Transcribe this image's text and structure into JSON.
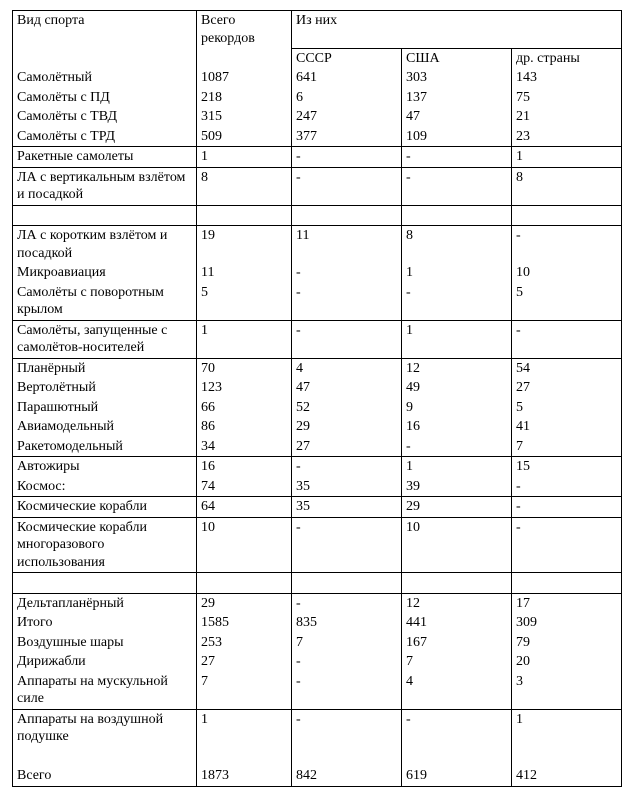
{
  "table": {
    "background_color": "#ffffff",
    "border_color": "#000000",
    "font_family": "Times New Roman",
    "font_size_pt": 11,
    "header": {
      "sport_type": "Вид спорта",
      "total_records": "Всего рекордов",
      "of_them": "Из них",
      "ussr": "СССР",
      "usa": "США",
      "other": "др. страны"
    },
    "groups": [
      {
        "rows": [
          {
            "label": "Самолётный",
            "total": "1087",
            "ussr": "641",
            "usa": "303",
            "other": "143"
          },
          {
            "label": "Самолёты с ПД",
            "total": "218",
            "ussr": "6",
            "usa": "137",
            "other": "75"
          },
          {
            "label": "Самолёты с ТВД",
            "total": "315",
            "ussr": "247",
            "usa": "47",
            "other": "21"
          },
          {
            "label": "Самолёты с ТРД",
            "total": "509",
            "ussr": "377",
            "usa": "109",
            "other": "23"
          }
        ]
      },
      {
        "rows": [
          {
            "label": "Ракетные самолеты",
            "total": "1",
            "ussr": "-",
            "usa": "-",
            "other": "1"
          }
        ]
      },
      {
        "rows": [
          {
            "label": "ЛА с вертикальным взлётом и посадкой",
            "total": "8",
            "ussr": "-",
            "usa": "-",
            "other": "8",
            "pad_after": true
          }
        ]
      },
      {
        "rows": [
          {
            "label": "ЛА с коротким взлётом и посадкой",
            "total": "19",
            "ussr": "11",
            "usa": "8",
            "other": "-"
          },
          {
            "label": "Микроавиация",
            "total": "11",
            "ussr": "-",
            "usa": "1",
            "other": "10"
          },
          {
            "label": "Самолёты с поворотным крылом",
            "total": "5",
            "ussr": "-",
            "usa": "-",
            "other": "5"
          }
        ]
      },
      {
        "rows": [
          {
            "label": "Самолёты, запущенные с самолётов-носителей",
            "total": "1",
            "ussr": "-",
            "usa": "1",
            "other": "-"
          }
        ]
      },
      {
        "rows": [
          {
            "label": "Планёрный",
            "total": "70",
            "ussr": "4",
            "usa": "12",
            "other": "54"
          },
          {
            "label": "Вертолётный",
            "total": "123",
            "ussr": "47",
            "usa": "49",
            "other": "27"
          },
          {
            "label": "Парашютный",
            "total": "66",
            "ussr": "52",
            "usa": "9",
            "other": "5"
          },
          {
            "label": "Авиамодельный",
            "total": "86",
            "ussr": "29",
            "usa": "16",
            "other": "41"
          },
          {
            "label": "Ракетомодельный",
            "total": "34",
            "ussr": "27",
            "usa": "-",
            "other": "7"
          }
        ]
      },
      {
        "rows": [
          {
            "label": "Автожиры",
            "total": "16",
            "ussr": "-",
            "usa": "1",
            "other": "15"
          },
          {
            "label": "Космос:",
            "total": "74",
            "ussr": "35",
            "usa": "39",
            "other": "-"
          }
        ]
      },
      {
        "rows": [
          {
            "label": "Космические корабли",
            "total": "64",
            "ussr": "35",
            "usa": "29",
            "other": "-"
          }
        ]
      },
      {
        "rows": [
          {
            "label": "Космические корабли многоразового использования",
            "total": "10",
            "ussr": "-",
            "usa": "10",
            "other": "-",
            "pad_after": true
          }
        ]
      },
      {
        "rows": [
          {
            "label": "Дельтапланёрный",
            "total": "29",
            "ussr": "-",
            "usa": "12",
            "other": "17"
          },
          {
            "label": "Итого",
            "total": "1585",
            "ussr": "835",
            "usa": "441",
            "other": "309"
          },
          {
            "label": "Воздушные шары",
            "total": "253",
            "ussr": "7",
            "usa": "167",
            "other": "79"
          },
          {
            "label": "Дирижабли",
            "total": "27",
            "ussr": "-",
            "usa": "7",
            "other": "20"
          },
          {
            "label": "Аппараты на мускульной силе",
            "total": "7",
            "ussr": "-",
            "usa": "4",
            "other": "3"
          }
        ]
      },
      {
        "rows": [
          {
            "label": "Аппараты на воздушной подушке",
            "total": "1",
            "ussr": "-",
            "usa": "-",
            "other": "1",
            "pad_before_last": true
          },
          {
            "label": "Всего",
            "total": "1873",
            "ussr": "842",
            "usa": "619",
            "other": "412"
          }
        ]
      }
    ]
  }
}
